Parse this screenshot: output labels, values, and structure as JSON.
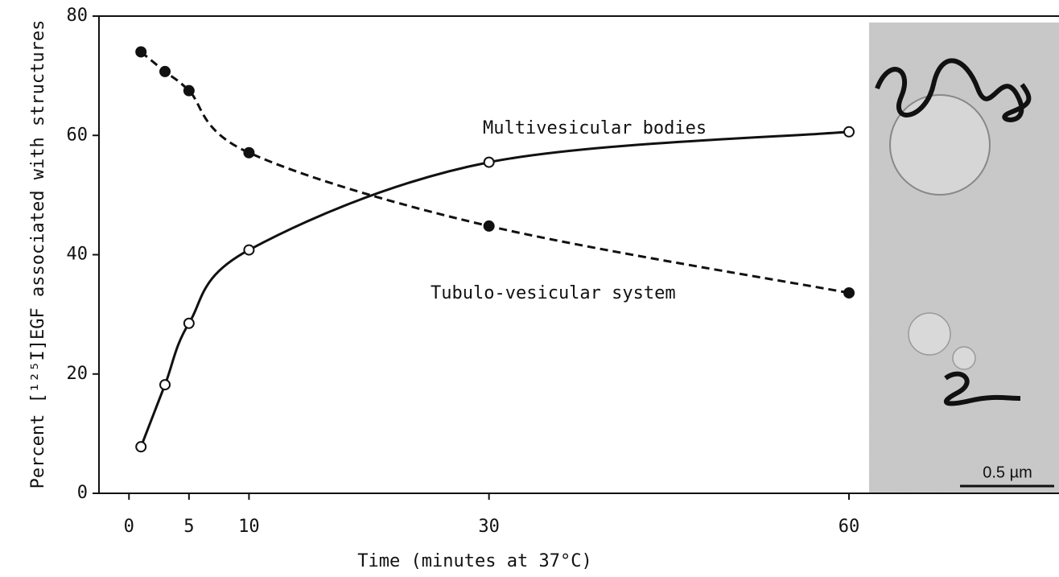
{
  "chart_data": {
    "type": "line",
    "x_label": "Time (minutes at 37°C)",
    "y_label": "Percent [¹²⁵I]EGF associated with structures",
    "xlim": [
      -2.5,
      77.5
    ],
    "ylim": [
      0,
      80
    ],
    "xticks": [
      0,
      5,
      10,
      30,
      60
    ],
    "yticks": [
      0,
      20,
      40,
      60,
      80
    ],
    "series": [
      {
        "name": "Multivesicular bodies",
        "color": "#111111",
        "dash": false,
        "marker": "open",
        "x": [
          1,
          3,
          5,
          10,
          30,
          60
        ],
        "values": [
          7.8,
          18.2,
          28.5,
          40.8,
          55.5,
          60.6
        ]
      },
      {
        "name": "Tubulo-vesicular system",
        "color": "#111111",
        "dash": true,
        "marker": "filled",
        "x": [
          1,
          3,
          5,
          10,
          30,
          60
        ],
        "values": [
          74,
          70.7,
          67.5,
          57.1,
          44.8,
          33.6
        ]
      }
    ],
    "inset_scale_bar": "0.5 µm"
  }
}
